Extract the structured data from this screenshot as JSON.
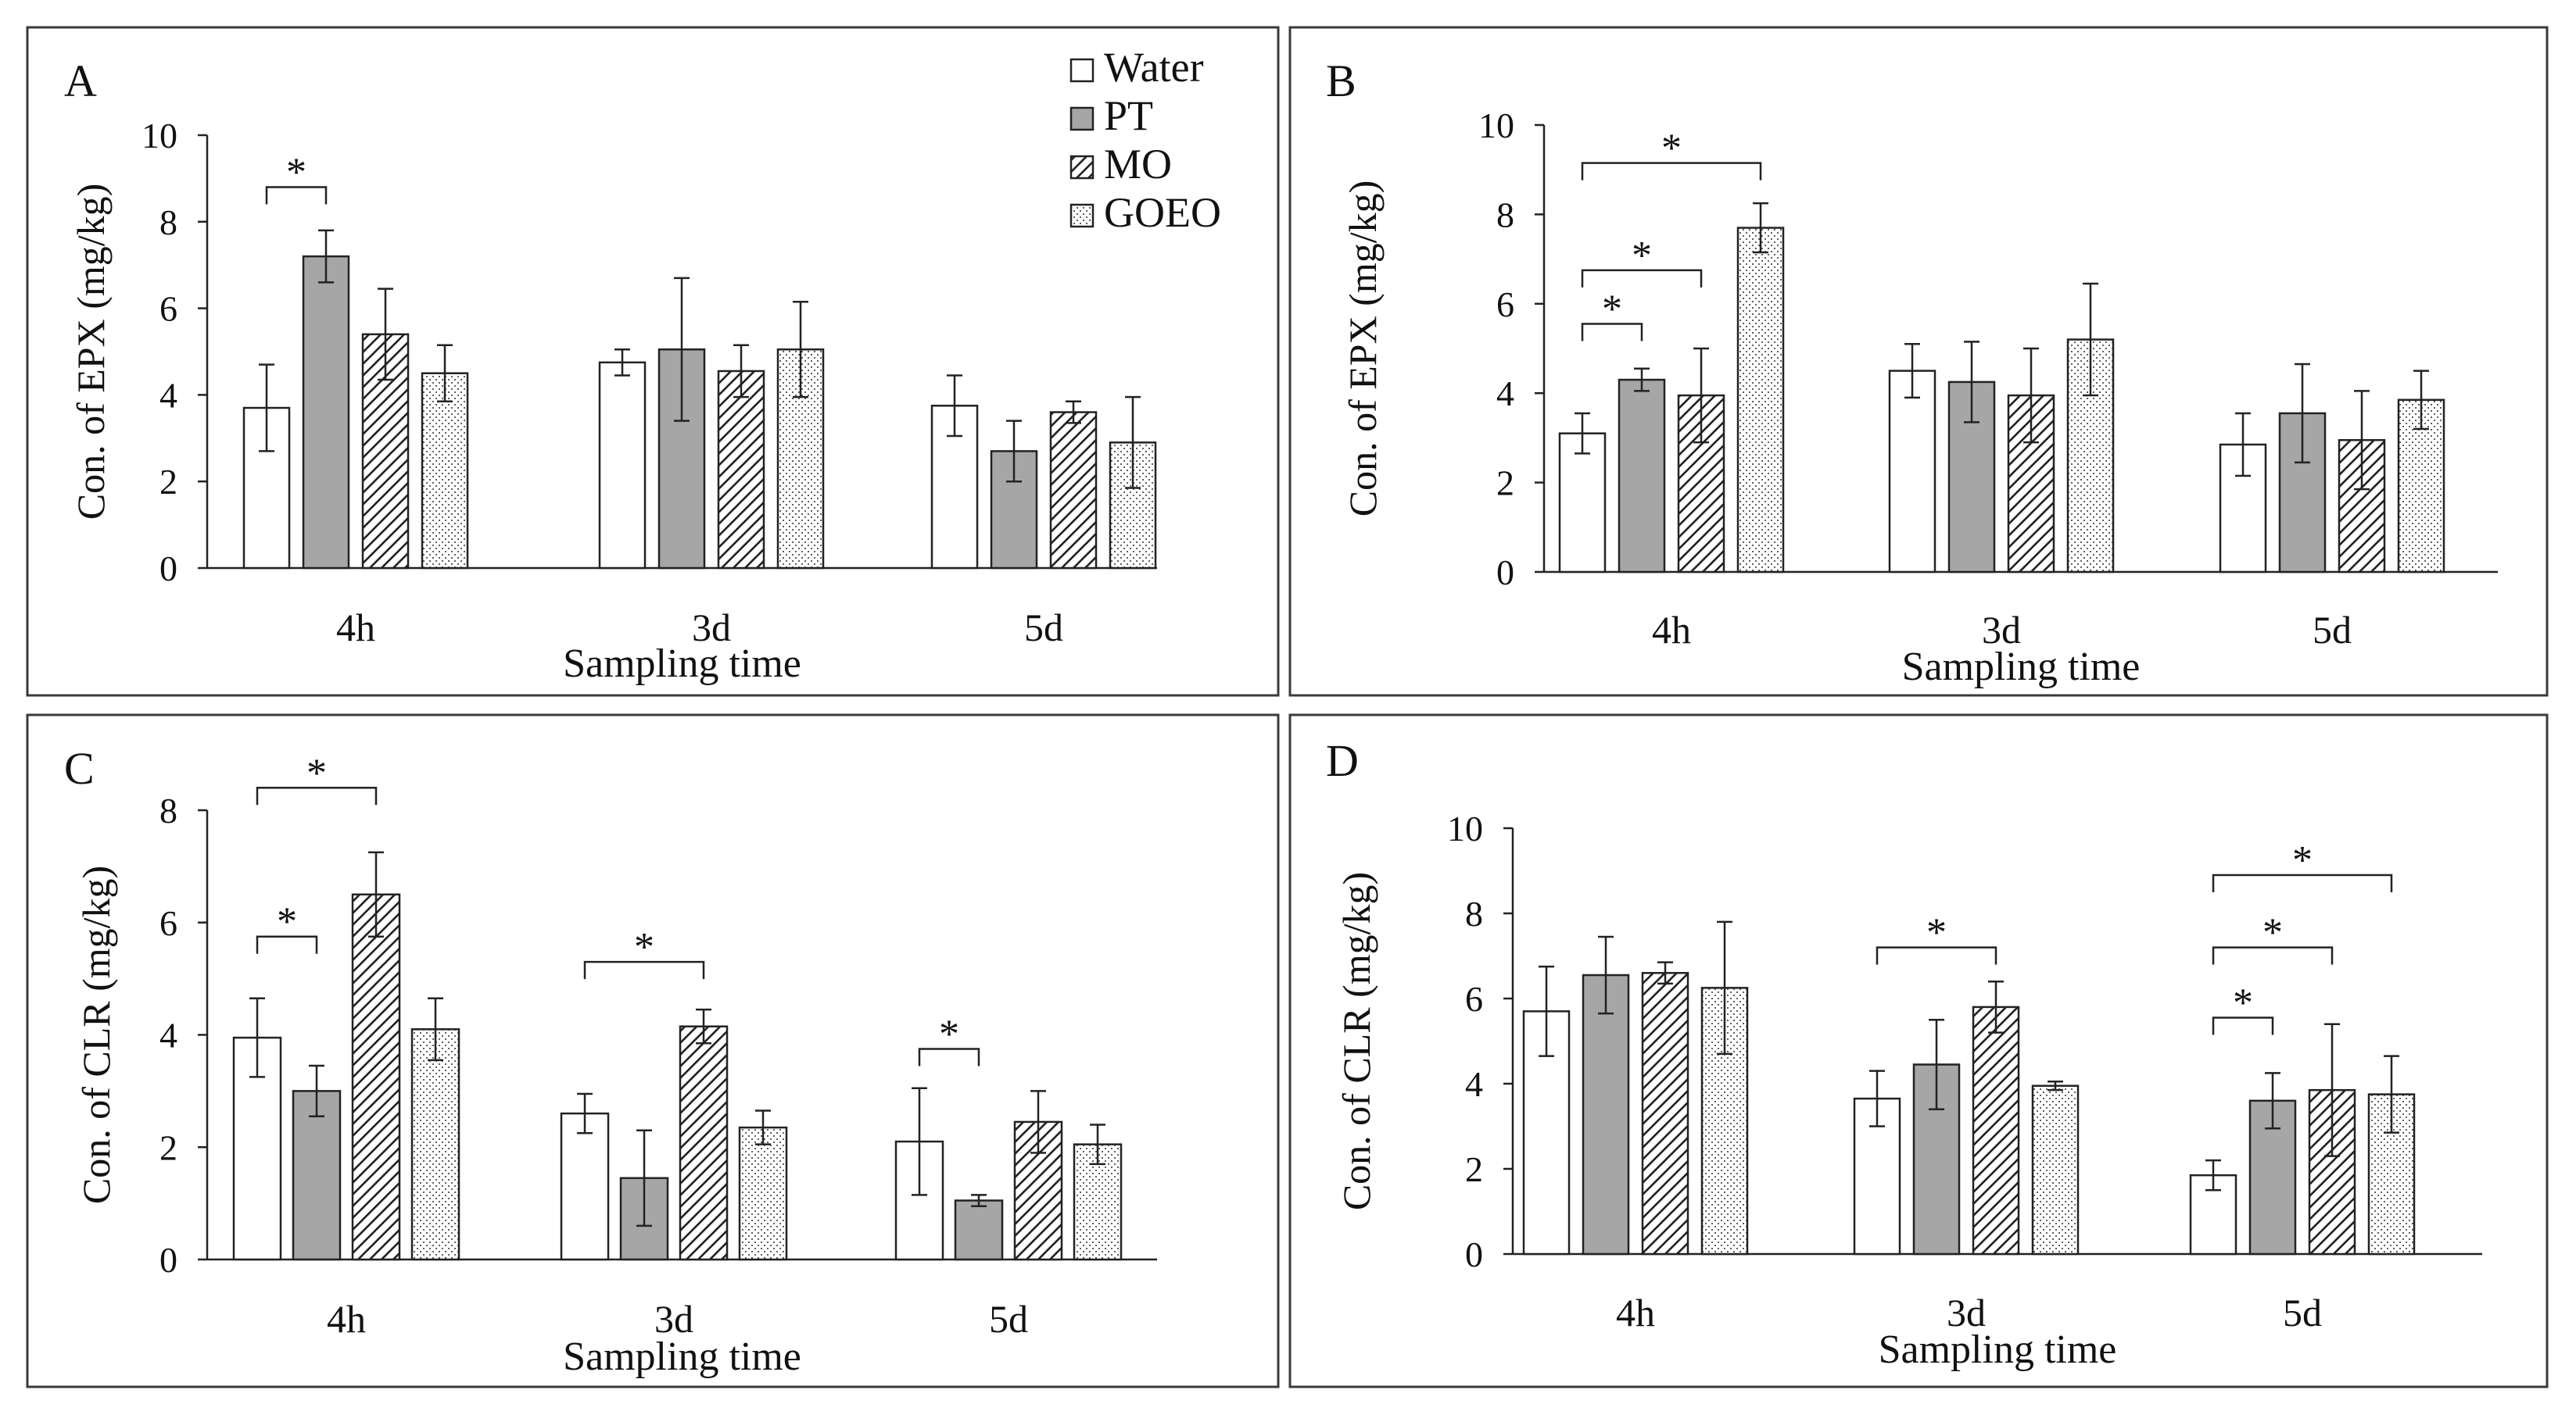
{
  "legend": [
    {
      "name": "Water",
      "pattern": "white"
    },
    {
      "name": "PT",
      "pattern": "gray"
    },
    {
      "name": "MO",
      "pattern": "hatch"
    },
    {
      "name": "GOEO",
      "pattern": "dots"
    }
  ],
  "colors": {
    "gray_fill": "#a6a6a6",
    "frame": "#3a3a3a",
    "ink": "#111111"
  },
  "chart_data": [
    {
      "type": "bar",
      "panel": "A",
      "title": "",
      "categories": [
        "4h",
        "3d",
        "5d"
      ],
      "series_names": [
        "Water",
        "PT",
        "MO",
        "GOEO"
      ],
      "values": [
        [
          3.7,
          7.2,
          5.4,
          4.5
        ],
        [
          4.75,
          5.05,
          4.55,
          5.05
        ],
        [
          3.75,
          2.7,
          3.6,
          2.9
        ]
      ],
      "errors": [
        [
          1.0,
          0.6,
          1.05,
          0.65
        ],
        [
          0.3,
          1.65,
          0.6,
          1.1
        ],
        [
          0.7,
          0.7,
          0.25,
          1.05
        ]
      ],
      "ylabel": "Con. of EPX (mg/kg)",
      "xlabel": "Sampling time",
      "ylim": [
        0,
        10
      ],
      "yticks": [
        0,
        2,
        4,
        6,
        8,
        10
      ],
      "show_legend": true,
      "significance": [
        {
          "group": 0,
          "from": 0,
          "to": 1,
          "label": "*",
          "level": 8.8
        }
      ]
    },
    {
      "type": "bar",
      "panel": "B",
      "title": "",
      "categories": [
        "4h",
        "3d",
        "5d"
      ],
      "series_names": [
        "Water",
        "PT",
        "MO",
        "GOEO"
      ],
      "values": [
        [
          3.1,
          4.3,
          3.95,
          7.7
        ],
        [
          4.5,
          4.25,
          3.95,
          5.2
        ],
        [
          2.85,
          3.55,
          2.95,
          3.85
        ]
      ],
      "errors": [
        [
          0.45,
          0.25,
          1.05,
          0.55
        ],
        [
          0.6,
          0.9,
          1.05,
          1.25
        ],
        [
          0.7,
          1.1,
          1.1,
          0.65
        ]
      ],
      "ylabel": "Con. of EPX (mg/kg)",
      "xlabel": "Sampling time",
      "ylim": [
        0,
        10
      ],
      "yticks": [
        0,
        2,
        4,
        6,
        8,
        10
      ],
      "show_legend": false,
      "significance": [
        {
          "group": 0,
          "from": 0,
          "to": 1,
          "label": "*",
          "level": 5.55
        },
        {
          "group": 0,
          "from": 0,
          "to": 2,
          "label": "*",
          "level": 6.75
        },
        {
          "group": 0,
          "from": 0,
          "to": 3,
          "label": "*",
          "level": 9.15
        }
      ]
    },
    {
      "type": "bar",
      "panel": "C",
      "title": "",
      "categories": [
        "4h",
        "3d",
        "5d"
      ],
      "series_names": [
        "Water",
        "PT",
        "MO",
        "GOEO"
      ],
      "values": [
        [
          3.95,
          3.0,
          6.5,
          4.1
        ],
        [
          2.6,
          1.45,
          4.15,
          2.35
        ],
        [
          2.1,
          1.05,
          2.45,
          2.05
        ]
      ],
      "errors": [
        [
          0.7,
          0.45,
          0.75,
          0.55
        ],
        [
          0.35,
          0.85,
          0.3,
          0.3
        ],
        [
          0.95,
          0.1,
          0.55,
          0.35
        ]
      ],
      "ylabel": "Con. of CLR (mg/kg)",
      "xlabel": "Sampling time",
      "ylim": [
        0,
        8
      ],
      "yticks": [
        0,
        2,
        4,
        6,
        8
      ],
      "show_legend": false,
      "significance": [
        {
          "group": 0,
          "from": 0,
          "to": 1,
          "label": "*",
          "level": 5.75
        },
        {
          "group": 0,
          "from": 0,
          "to": 2,
          "label": "*",
          "level": 8.4
        },
        {
          "group": 1,
          "from": 0,
          "to": 2,
          "label": "*",
          "level": 5.3
        },
        {
          "group": 2,
          "from": 0,
          "to": 1,
          "label": "*",
          "level": 3.75
        }
      ]
    },
    {
      "type": "bar",
      "panel": "D",
      "title": "",
      "categories": [
        "4h",
        "3d",
        "5d"
      ],
      "series_names": [
        "Water",
        "PT",
        "MO",
        "GOEO"
      ],
      "values": [
        [
          5.7,
          6.55,
          6.6,
          6.25
        ],
        [
          3.65,
          4.45,
          5.8,
          3.95
        ],
        [
          1.85,
          3.6,
          3.85,
          3.75
        ]
      ],
      "errors": [
        [
          1.05,
          0.9,
          0.25,
          1.55
        ],
        [
          0.65,
          1.05,
          0.6,
          0.1
        ],
        [
          0.35,
          0.65,
          1.55,
          0.9
        ]
      ],
      "ylabel": "Con. of CLR (mg/kg)",
      "xlabel": "Sampling time",
      "ylim": [
        0,
        10
      ],
      "yticks": [
        0,
        2,
        4,
        6,
        8,
        10
      ],
      "show_legend": false,
      "significance": [
        {
          "group": 1,
          "from": 0,
          "to": 2,
          "label": "*",
          "level": 7.2
        },
        {
          "group": 2,
          "from": 0,
          "to": 1,
          "label": "*",
          "level": 5.55
        },
        {
          "group": 2,
          "from": 0,
          "to": 2,
          "label": "*",
          "level": 7.2
        },
        {
          "group": 2,
          "from": 0,
          "to": 3,
          "label": "*",
          "level": 8.9
        }
      ]
    }
  ]
}
